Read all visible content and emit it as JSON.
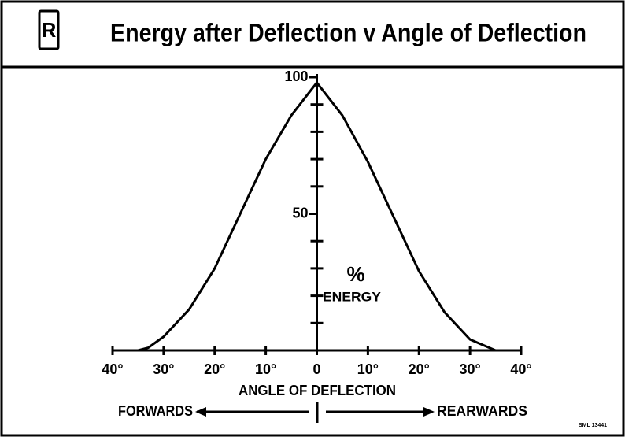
{
  "logo": "R",
  "code": "SML 13441",
  "chart_data": {
    "type": "line",
    "title": "Energy after Deflection v Angle of Deflection",
    "xlabel": "ANGLE OF DEFLECTION",
    "ylabel_symbol": "%",
    "ylabel": "ENERGY",
    "left_direction": "FORWARDS",
    "right_direction": "REARWARDS",
    "x": [
      -40,
      -35,
      -33,
      -30,
      -25,
      -20,
      -15,
      -10,
      -5,
      0,
      5,
      10,
      15,
      20,
      25,
      30,
      35,
      40
    ],
    "values": [
      0,
      0,
      1,
      5,
      15,
      30,
      50,
      70,
      86,
      98,
      86,
      69,
      49,
      29,
      14,
      4,
      0,
      0
    ],
    "color": "#000000",
    "xlim": [
      -40,
      40
    ],
    "xticks": [
      {
        "value": -40,
        "label": "40°"
      },
      {
        "value": -30,
        "label": "30°"
      },
      {
        "value": -20,
        "label": "20°"
      },
      {
        "value": -10,
        "label": "10°"
      },
      0,
      {
        "value": 10,
        "label": "10°"
      },
      {
        "value": 20,
        "label": "20°"
      },
      {
        "value": 30,
        "label": "30°"
      },
      {
        "value": 40,
        "label": "40°"
      }
    ],
    "ylim": [
      0,
      100
    ],
    "yticks": [
      50,
      100
    ],
    "yminor_ticks": [
      10,
      20,
      30,
      40,
      60,
      70,
      80,
      90
    ]
  }
}
